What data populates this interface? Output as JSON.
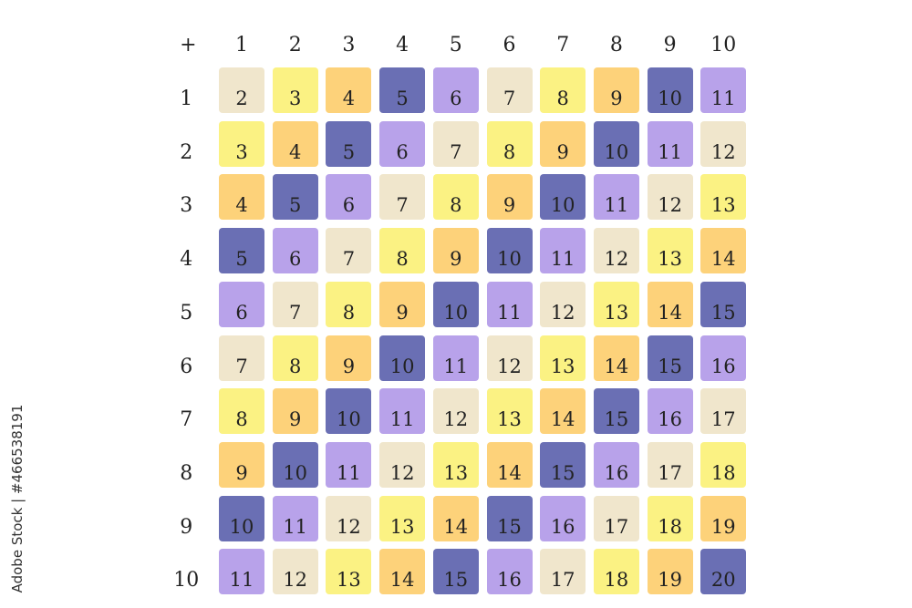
{
  "operator": "+",
  "col_headers": [
    "1",
    "2",
    "3",
    "4",
    "5",
    "6",
    "7",
    "8",
    "9",
    "10"
  ],
  "row_headers": [
    "1",
    "2",
    "3",
    "4",
    "5",
    "6",
    "7",
    "8",
    "9",
    "10"
  ],
  "cells": [
    [
      "2",
      "3",
      "4",
      "5",
      "6",
      "7",
      "8",
      "9",
      "10",
      "11"
    ],
    [
      "3",
      "4",
      "5",
      "6",
      "7",
      "8",
      "9",
      "10",
      "11",
      "12"
    ],
    [
      "4",
      "5",
      "6",
      "7",
      "8",
      "9",
      "10",
      "11",
      "12",
      "13"
    ],
    [
      "5",
      "6",
      "7",
      "8",
      "9",
      "10",
      "11",
      "12",
      "13",
      "14"
    ],
    [
      "6",
      "7",
      "8",
      "9",
      "10",
      "11",
      "12",
      "13",
      "14",
      "15"
    ],
    [
      "7",
      "8",
      "9",
      "10",
      "11",
      "12",
      "13",
      "14",
      "15",
      "16"
    ],
    [
      "8",
      "9",
      "10",
      "11",
      "12",
      "13",
      "14",
      "15",
      "16",
      "17"
    ],
    [
      "9",
      "10",
      "11",
      "12",
      "13",
      "14",
      "15",
      "16",
      "17",
      "18"
    ],
    [
      "10",
      "11",
      "12",
      "13",
      "14",
      "15",
      "16",
      "17",
      "18",
      "19"
    ],
    [
      "11",
      "12",
      "13",
      "14",
      "15",
      "16",
      "17",
      "18",
      "19",
      "20"
    ]
  ],
  "palette": [
    "#f0e6cc",
    "#fbf283",
    "#fdd27a",
    "#6a6fb4",
    "#b8a2ea"
  ],
  "watermark_side": "Adobe Stock | #466538191"
}
